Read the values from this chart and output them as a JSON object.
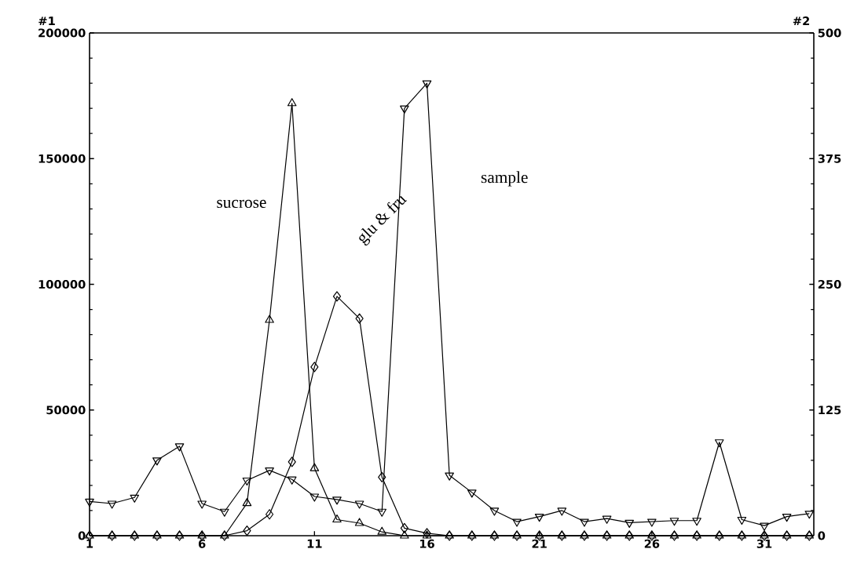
{
  "chart_data": {
    "type": "line",
    "ylabel": "#1",
    "y2label": "#2",
    "x": [
      1,
      2,
      3,
      4,
      5,
      6,
      7,
      8,
      9,
      10,
      11,
      12,
      13,
      14,
      15,
      16,
      17,
      18,
      19,
      20,
      21,
      22,
      23,
      24,
      25,
      26,
      27,
      28,
      29,
      30,
      31,
      32,
      33
    ],
    "xlim": [
      1,
      33.2
    ],
    "xticks": [
      1,
      6,
      11,
      16,
      21,
      26,
      31
    ],
    "ylim": [
      0,
      200000
    ],
    "yticks": [
      0,
      50000,
      100000,
      150000,
      200000
    ],
    "y2lim": [
      0,
      500
    ],
    "y2ticks": [
      0,
      125,
      250,
      375,
      500
    ],
    "series": [
      {
        "color": "#000000",
        "marker": "triangle",
        "values": [
          0,
          0,
          0,
          0,
          0,
          0,
          0,
          12900,
          85800,
          172000,
          26800,
          6400,
          5000,
          1500,
          0,
          0,
          0,
          0,
          0,
          0,
          0,
          0,
          0,
          0,
          0,
          0,
          0,
          0,
          0,
          0,
          0,
          0,
          0
        ]
      },
      {
        "color": "#000000",
        "marker": "diamond",
        "values": [
          0,
          0,
          0,
          0,
          0,
          0,
          0,
          2000,
          8500,
          29400,
          67100,
          95200,
          86400,
          23300,
          3000,
          1000,
          0,
          0,
          0,
          0,
          0,
          0,
          0,
          0,
          0,
          0,
          0,
          0,
          0,
          0,
          0,
          0,
          0
        ]
      },
      {
        "color": "#000000",
        "marker": "triangle_down",
        "axis": "y2",
        "values": [
          34,
          32,
          38,
          75,
          89,
          32,
          24,
          55,
          65,
          56,
          39,
          36,
          32,
          24,
          425,
          450,
          60,
          43,
          25,
          14,
          19,
          25,
          14,
          17,
          13,
          14,
          15,
          15,
          93,
          16,
          10,
          19,
          22
        ]
      }
    ],
    "annotations": [
      "sucrose",
      "glu & fru",
      "sample"
    ]
  }
}
